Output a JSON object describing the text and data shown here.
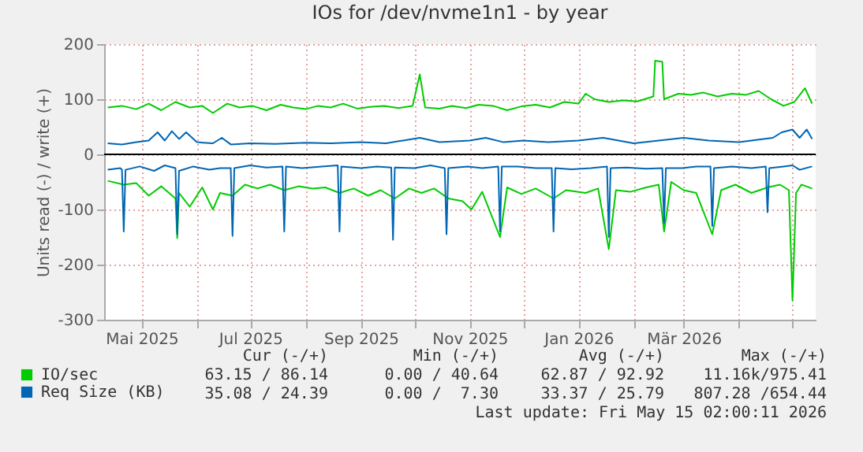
{
  "chart_data": {
    "type": "line",
    "title": "IOs for /dev/nvme1n1 - by year",
    "ylabel": "Units read (-) / write (+)",
    "xlim": [
      "2025-04-10",
      "2026-05-14"
    ],
    "xticks": [
      {
        "value": "2025-05-01",
        "label": "Mai 2025"
      },
      {
        "value": "2025-06-01",
        "label": null
      },
      {
        "value": "2025-07-01",
        "label": "Jul 2025"
      },
      {
        "value": "2025-08-01",
        "label": null
      },
      {
        "value": "2025-09-01",
        "label": "Sep 2025"
      },
      {
        "value": "2025-10-01",
        "label": null
      },
      {
        "value": "2025-11-01",
        "label": "Nov 2025"
      },
      {
        "value": "2025-12-01",
        "label": null
      },
      {
        "value": "2026-01-01",
        "label": "Jan 2026"
      },
      {
        "value": "2026-02-01",
        "label": null
      },
      {
        "value": "2026-03-01",
        "label": "Mär 2026"
      },
      {
        "value": "2026-04-01",
        "label": null
      },
      {
        "value": "2026-05-01",
        "label": null
      }
    ],
    "ylim": [
      -300,
      200
    ],
    "yticks": [
      -300,
      -200,
      -100,
      0,
      100,
      200
    ],
    "grid": true,
    "legend": "bottom left",
    "ref_lines": [
      {
        "axis": "y",
        "value": 0,
        "color": "#000000"
      }
    ],
    "series": [
      {
        "name": "IO/sec",
        "color": "#00cc00",
        "x": [
          "2025-04-12",
          "2025-04-20",
          "2025-04-28",
          "2025-05-05",
          "2025-05-12",
          "2025-05-20",
          "2025-05-28",
          "2025-06-04",
          "2025-06-10",
          "2025-06-18",
          "2025-06-25",
          "2025-07-02",
          "2025-07-10",
          "2025-07-18",
          "2025-07-25",
          "2025-08-01",
          "2025-08-08",
          "2025-08-15",
          "2025-08-22",
          "2025-08-30",
          "2025-09-06",
          "2025-09-14",
          "2025-09-22",
          "2025-09-30",
          "2025-10-04",
          "2025-10-07",
          "2025-10-15",
          "2025-10-22",
          "2025-10-30",
          "2025-11-06",
          "2025-11-14",
          "2025-11-22",
          "2025-11-30",
          "2025-12-08",
          "2025-12-16",
          "2025-12-24",
          "2026-01-01",
          "2026-01-05",
          "2026-01-10",
          "2026-01-18",
          "2026-01-26",
          "2026-02-03",
          "2026-02-12",
          "2026-02-13",
          "2026-02-17",
          "2026-02-18",
          "2026-02-26",
          "2026-03-05",
          "2026-03-12",
          "2026-03-20",
          "2026-03-28",
          "2026-04-05",
          "2026-04-12",
          "2026-04-19",
          "2026-04-26",
          "2026-05-02",
          "2026-05-08",
          "2026-05-12"
        ],
        "values": [
          85,
          88,
          82,
          92,
          80,
          95,
          85,
          88,
          75,
          92,
          85,
          88,
          80,
          90,
          85,
          82,
          88,
          85,
          92,
          83,
          86,
          88,
          84,
          88,
          145,
          85,
          83,
          88,
          84,
          90,
          88,
          80,
          87,
          90,
          85,
          95,
          92,
          110,
          100,
          95,
          98,
          96,
          105,
          170,
          168,
          100,
          110,
          108,
          112,
          105,
          110,
          108,
          115,
          100,
          88,
          95,
          120,
          92
        ]
      },
      {
        "color": "#00cc00",
        "x": [
          "2025-04-12",
          "2025-04-21",
          "2025-04-28",
          "2025-05-05",
          "2025-05-12",
          "2025-05-20",
          "2025-05-21",
          "2025-05-22",
          "2025-05-28",
          "2025-06-04",
          "2025-06-10",
          "2025-06-14",
          "2025-06-21",
          "2025-06-28",
          "2025-07-05",
          "2025-07-12",
          "2025-07-20",
          "2025-07-28",
          "2025-08-05",
          "2025-08-12",
          "2025-08-20",
          "2025-08-28",
          "2025-09-05",
          "2025-09-12",
          "2025-09-20",
          "2025-09-28",
          "2025-10-05",
          "2025-10-12",
          "2025-10-20",
          "2025-10-28",
          "2025-11-02",
          "2025-11-08",
          "2025-11-18",
          "2025-11-22",
          "2025-11-30",
          "2025-12-08",
          "2025-12-18",
          "2025-12-25",
          "2026-01-05",
          "2026-01-12",
          "2026-01-18",
          "2026-01-22",
          "2026-01-30",
          "2026-02-08",
          "2026-02-15",
          "2026-02-18",
          "2026-02-22",
          "2026-03-01",
          "2026-03-08",
          "2026-03-17",
          "2026-03-22",
          "2026-03-30",
          "2026-04-08",
          "2026-04-17",
          "2026-04-24",
          "2026-04-29",
          "2026-05-01",
          "2026-05-03",
          "2026-05-06",
          "2026-05-12"
        ],
        "values": [
          -48,
          -55,
          -52,
          -75,
          -58,
          -80,
          -152,
          -70,
          -95,
          -60,
          -100,
          -70,
          -75,
          -55,
          -62,
          -55,
          -65,
          -58,
          -62,
          -60,
          -70,
          -62,
          -75,
          -65,
          -80,
          -62,
          -70,
          -62,
          -80,
          -85,
          -100,
          -68,
          -150,
          -60,
          -72,
          -62,
          -80,
          -65,
          -70,
          -62,
          -172,
          -65,
          -68,
          -60,
          -55,
          -140,
          -50,
          -65,
          -70,
          -145,
          -65,
          -55,
          -70,
          -60,
          -55,
          -65,
          -265,
          -70,
          -55,
          -62
        ]
      },
      {
        "name": "Req Size (KB)",
        "color": "#0066b3",
        "x": [
          "2025-04-12",
          "2025-04-20",
          "2025-04-28",
          "2025-05-05",
          "2025-05-10",
          "2025-05-14",
          "2025-05-18",
          "2025-05-22",
          "2025-05-26",
          "2025-06-01",
          "2025-06-10",
          "2025-06-15",
          "2025-06-20",
          "2025-07-01",
          "2025-07-15",
          "2025-08-01",
          "2025-08-15",
          "2025-09-01",
          "2025-09-15",
          "2025-10-04",
          "2025-10-15",
          "2025-11-01",
          "2025-11-10",
          "2025-11-20",
          "2025-12-01",
          "2025-12-15",
          "2026-01-01",
          "2026-01-15",
          "2026-02-01",
          "2026-02-15",
          "2026-03-01",
          "2026-03-15",
          "2026-04-01",
          "2026-04-20",
          "2026-04-25",
          "2026-05-01",
          "2026-05-05",
          "2026-05-09",
          "2026-05-12"
        ],
        "values": [
          20,
          18,
          22,
          25,
          40,
          25,
          42,
          28,
          40,
          22,
          20,
          30,
          18,
          20,
          19,
          21,
          20,
          22,
          20,
          30,
          22,
          25,
          30,
          22,
          25,
          22,
          25,
          30,
          20,
          25,
          30,
          25,
          22,
          30,
          40,
          45,
          30,
          45,
          28
        ]
      },
      {
        "color": "#0066b3",
        "x": [
          "2025-04-12",
          "2025-04-19",
          "2025-04-20",
          "2025-04-21",
          "2025-04-22",
          "2025-04-30",
          "2025-05-08",
          "2025-05-14",
          "2025-05-20",
          "2025-05-21",
          "2025-05-22",
          "2025-05-30",
          "2025-06-08",
          "2025-06-14",
          "2025-06-20",
          "2025-06-21",
          "2025-06-22",
          "2025-07-01",
          "2025-07-10",
          "2025-07-19",
          "2025-07-20",
          "2025-07-21",
          "2025-07-30",
          "2025-08-10",
          "2025-08-19",
          "2025-08-20",
          "2025-08-21",
          "2025-09-01",
          "2025-09-10",
          "2025-09-18",
          "2025-09-19",
          "2025-09-20",
          "2025-10-01",
          "2025-10-10",
          "2025-10-18",
          "2025-10-19",
          "2025-10-20",
          "2025-10-31",
          "2025-11-08",
          "2025-11-17",
          "2025-11-18",
          "2025-11-19",
          "2025-11-28",
          "2025-12-08",
          "2025-12-17",
          "2025-12-18",
          "2025-12-19",
          "2025-12-28",
          "2026-01-08",
          "2026-01-17",
          "2026-01-18",
          "2026-01-19",
          "2026-01-28",
          "2026-02-08",
          "2026-02-17",
          "2026-02-18",
          "2026-02-19",
          "2026-02-28",
          "2026-03-08",
          "2026-03-16",
          "2026-03-17",
          "2026-03-18",
          "2026-03-28",
          "2026-04-08",
          "2026-04-16",
          "2026-04-17",
          "2026-04-18",
          "2026-04-26",
          "2026-05-01",
          "2026-05-05",
          "2026-05-12"
        ],
        "values": [
          -28,
          -25,
          -28,
          -140,
          -28,
          -22,
          -30,
          -20,
          -25,
          -145,
          -30,
          -22,
          -28,
          -25,
          -25,
          -148,
          -25,
          -20,
          -24,
          -22,
          -140,
          -22,
          -25,
          -22,
          -20,
          -140,
          -22,
          -25,
          -22,
          -24,
          -155,
          -24,
          -25,
          -20,
          -25,
          -145,
          -25,
          -22,
          -25,
          -22,
          -140,
          -22,
          -22,
          -25,
          -25,
          -140,
          -25,
          -27,
          -25,
          -22,
          -150,
          -25,
          -24,
          -26,
          -25,
          -125,
          -25,
          -25,
          -22,
          -22,
          -130,
          -25,
          -22,
          -25,
          -22,
          -105,
          -25,
          -22,
          -20,
          -28,
          -22
        ]
      }
    ],
    "annotations": [
      "Cur (-/+)",
      "Min (-/+)",
      "Avg (-/+)",
      "Max (-/+)",
      "63.15 / 86.14",
      "0.00 / 40.64",
      "62.87 / 92.92",
      "11.16k/975.41",
      "35.08 / 24.39",
      "0.00 /  7.30",
      "33.37 / 25.79",
      "807.28 /654.44",
      "Last update: Fri May 15 02:00:11 2026"
    ]
  }
}
